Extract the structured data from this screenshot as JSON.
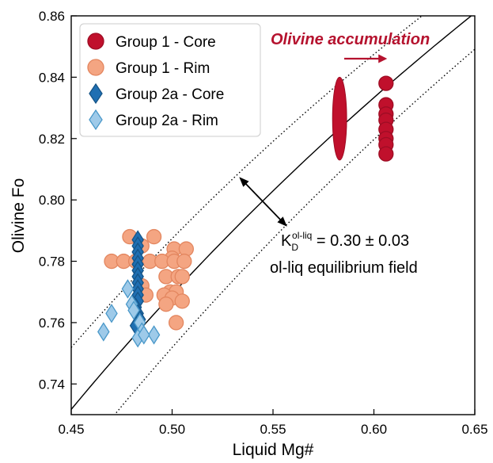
{
  "chart_data": {
    "type": "scatter",
    "xlabel": "Liquid Mg#",
    "ylabel": "Olivine Fo",
    "xlim": [
      0.45,
      0.65
    ],
    "ylim": [
      0.73,
      0.86
    ],
    "xticks": [
      0.45,
      0.5,
      0.55,
      0.6,
      0.65
    ],
    "yticks": [
      0.74,
      0.76,
      0.78,
      0.8,
      0.82,
      0.84,
      0.86
    ],
    "xtick_labels": [
      "0.45",
      "0.50",
      "0.55",
      "0.60",
      "0.65"
    ],
    "ytick_labels": [
      "0.74",
      "0.76",
      "0.78",
      "0.80",
      "0.82",
      "0.84",
      "0.86"
    ],
    "grid": false,
    "legend_position": "top-left",
    "kd_label_base": "K",
    "kd_label_sub": "D",
    "kd_label_sup": "ol-liq",
    "kd_value_text": " = 0.30 ± 0.03",
    "equilibrium_label": "ol-liq equilibrium field",
    "accumulation_label": "Olivine accumulation",
    "equilibrium_lines": [
      {
        "style": "solid",
        "kd": 0.3
      },
      {
        "style": "dotted",
        "kd": 0.27
      },
      {
        "style": "dotted",
        "kd": 0.33
      }
    ],
    "series": [
      {
        "name": "Group 1 - Core",
        "marker": "circle",
        "fill": "#c0102c",
        "stroke": "#9e0d24",
        "points": [
          [
            0.606,
            0.838
          ],
          [
            0.606,
            0.831
          ],
          [
            0.606,
            0.828
          ],
          [
            0.606,
            0.826
          ],
          [
            0.606,
            0.823
          ],
          [
            0.606,
            0.82
          ],
          [
            0.606,
            0.818
          ],
          [
            0.606,
            0.815
          ]
        ],
        "ellipse": {
          "x": 0.583,
          "y": 0.8265,
          "x_halfwidth": 0.0035,
          "y_halfheight": 0.0135
        }
      },
      {
        "name": "Group 1 - Rim",
        "marker": "circle",
        "fill": "#f4a582",
        "stroke": "#e3865f",
        "points": [
          [
            0.479,
            0.788
          ],
          [
            0.491,
            0.788
          ],
          [
            0.485,
            0.785
          ],
          [
            0.501,
            0.784
          ],
          [
            0.507,
            0.784
          ],
          [
            0.5,
            0.781
          ],
          [
            0.47,
            0.78
          ],
          [
            0.476,
            0.78
          ],
          [
            0.482,
            0.78
          ],
          [
            0.489,
            0.78
          ],
          [
            0.495,
            0.78
          ],
          [
            0.501,
            0.78
          ],
          [
            0.506,
            0.78
          ],
          [
            0.497,
            0.775
          ],
          [
            0.503,
            0.775
          ],
          [
            0.505,
            0.775
          ],
          [
            0.485,
            0.772
          ],
          [
            0.499,
            0.77
          ],
          [
            0.502,
            0.77
          ],
          [
            0.487,
            0.769
          ],
          [
            0.496,
            0.769
          ],
          [
            0.5,
            0.768
          ],
          [
            0.505,
            0.767
          ],
          [
            0.497,
            0.766
          ],
          [
            0.502,
            0.76
          ]
        ]
      },
      {
        "name": "Group 2a - Core",
        "marker": "diamond",
        "fill": "#1f6fb2",
        "stroke": "#155487",
        "points": [
          [
            0.483,
            0.787
          ],
          [
            0.483,
            0.785
          ],
          [
            0.483,
            0.783
          ],
          [
            0.483,
            0.781
          ],
          [
            0.483,
            0.779
          ],
          [
            0.483,
            0.777
          ],
          [
            0.483,
            0.775
          ],
          [
            0.483,
            0.773
          ],
          [
            0.483,
            0.771
          ],
          [
            0.483,
            0.769
          ],
          [
            0.483,
            0.767
          ],
          [
            0.482,
            0.765
          ],
          [
            0.483,
            0.763
          ],
          [
            0.484,
            0.761
          ],
          [
            0.482,
            0.759
          ]
        ]
      },
      {
        "name": "Group 2a - Rim",
        "marker": "diamond",
        "fill": "#9ecae9",
        "stroke": "#4a98c9",
        "points": [
          [
            0.478,
            0.771
          ],
          [
            0.48,
            0.766
          ],
          [
            0.47,
            0.763
          ],
          [
            0.481,
            0.764
          ],
          [
            0.484,
            0.76
          ],
          [
            0.466,
            0.757
          ],
          [
            0.485,
            0.757
          ],
          [
            0.483,
            0.755
          ],
          [
            0.491,
            0.756
          ],
          [
            0.486,
            0.756
          ]
        ]
      }
    ]
  }
}
